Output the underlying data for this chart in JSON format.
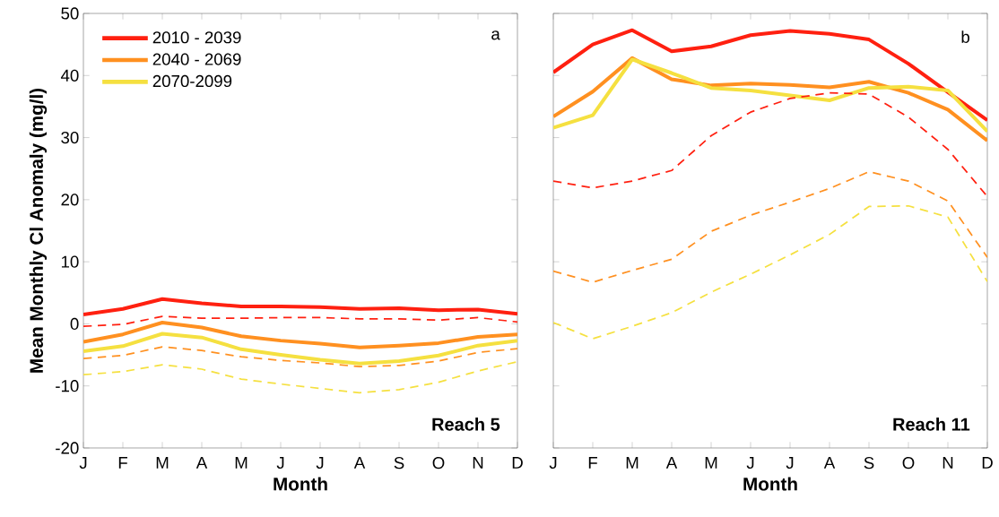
{
  "chart_data": [
    {
      "type": "line",
      "xlabel": "Month",
      "ylabel": "Mean Monthly Cl Anomaly (mg/l)",
      "categories": [
        "J",
        "F",
        "M",
        "A",
        "M",
        "J",
        "J",
        "A",
        "S",
        "O",
        "N",
        "D"
      ],
      "ylim": [
        -20,
        50
      ],
      "yticks": [
        -20,
        -10,
        0,
        10,
        20,
        30,
        40,
        50
      ],
      "legend": "top left",
      "grid": false,
      "annotations": [
        "a",
        "Reach 5"
      ],
      "series": [
        {
          "name": "2010 - 2039",
          "color": "#ff2010",
          "line_style": "solid",
          "values": [
            1.5,
            2.4,
            4,
            3.3,
            2.8,
            2.8,
            2.7,
            2.4,
            2.5,
            2.2,
            2.3,
            1.6
          ]
        },
        {
          "name": "2040 - 2069",
          "color": "#ff9020",
          "line_style": "solid",
          "values": [
            -2.9,
            -1.7,
            0.2,
            -0.6,
            -2,
            -2.7,
            -3.2,
            -3.8,
            -3.5,
            -3.1,
            -2.1,
            -1.7
          ]
        },
        {
          "name": "2070-2099",
          "color": "#f5e040",
          "line_style": "solid",
          "values": [
            -4.4,
            -3.6,
            -1.6,
            -2.2,
            -4.1,
            -5.0,
            -5.8,
            -6.4,
            -6.0,
            -5.1,
            -3.5,
            -2.7
          ]
        },
        {
          "color": "#ff2010",
          "line_style": "dashed",
          "values": [
            -0.4,
            -0.1,
            1.2,
            0.9,
            0.9,
            1.0,
            1.0,
            0.8,
            0.8,
            0.6,
            1.0,
            0.3
          ]
        },
        {
          "color": "#ff9020",
          "line_style": "dashed",
          "values": [
            -5.6,
            -5.1,
            -3.7,
            -4.3,
            -5.3,
            -5.9,
            -6.3,
            -6.9,
            -6.7,
            -6.0,
            -4.6,
            -4.0
          ]
        },
        {
          "color": "#f5e040",
          "line_style": "dashed",
          "values": [
            -8.2,
            -7.7,
            -6.6,
            -7.3,
            -8.9,
            -9.7,
            -10.4,
            -11.1,
            -10.6,
            -9.4,
            -7.6,
            -6.1
          ]
        }
      ]
    },
    {
      "type": "line",
      "xlabel": "Month",
      "categories": [
        "J",
        "F",
        "M",
        "A",
        "M",
        "J",
        "J",
        "A",
        "S",
        "O",
        "N",
        "D"
      ],
      "ylim": [
        -20,
        50
      ],
      "yticks": [
        -20,
        -10,
        0,
        10,
        20,
        30,
        40,
        50
      ],
      "tick_labels": "x",
      "grid": false,
      "annotations": [
        "b",
        "Reach 11"
      ],
      "series": [
        {
          "color": "#ff2010",
          "line_style": "solid",
          "values": [
            40.5,
            45,
            47.3,
            43.9,
            44.7,
            46.5,
            47.2,
            46.7,
            45.8,
            41.9,
            37.3,
            32.8
          ]
        },
        {
          "color": "#ff9020",
          "line_style": "solid",
          "values": [
            33.4,
            37.4,
            42.8,
            39.4,
            38.4,
            38.7,
            38.5,
            38.1,
            39,
            37.2,
            34.5,
            29.5
          ]
        },
        {
          "color": "#f5e040",
          "line_style": "solid",
          "values": [
            31.6,
            33.6,
            42.6,
            40.4,
            38,
            37.6,
            36.8,
            36,
            38,
            38.2,
            37.6,
            31
          ]
        },
        {
          "color": "#ff2010",
          "line_style": "dashed",
          "values": [
            23,
            21.9,
            23,
            24.7,
            30.3,
            34.1,
            36.3,
            37.2,
            37,
            33.3,
            28.1,
            20.5
          ]
        },
        {
          "color": "#ff9020",
          "line_style": "dashed",
          "values": [
            8.5,
            6.7,
            8.6,
            10.4,
            14.9,
            17.5,
            19.6,
            21.8,
            24.5,
            23,
            19.8,
            10.7
          ]
        },
        {
          "color": "#f5e040",
          "line_style": "dashed",
          "values": [
            0.2,
            -2.4,
            -0.4,
            1.8,
            5.1,
            8.0,
            11.1,
            14.4,
            18.9,
            19,
            17.2,
            6.8
          ]
        }
      ]
    }
  ]
}
